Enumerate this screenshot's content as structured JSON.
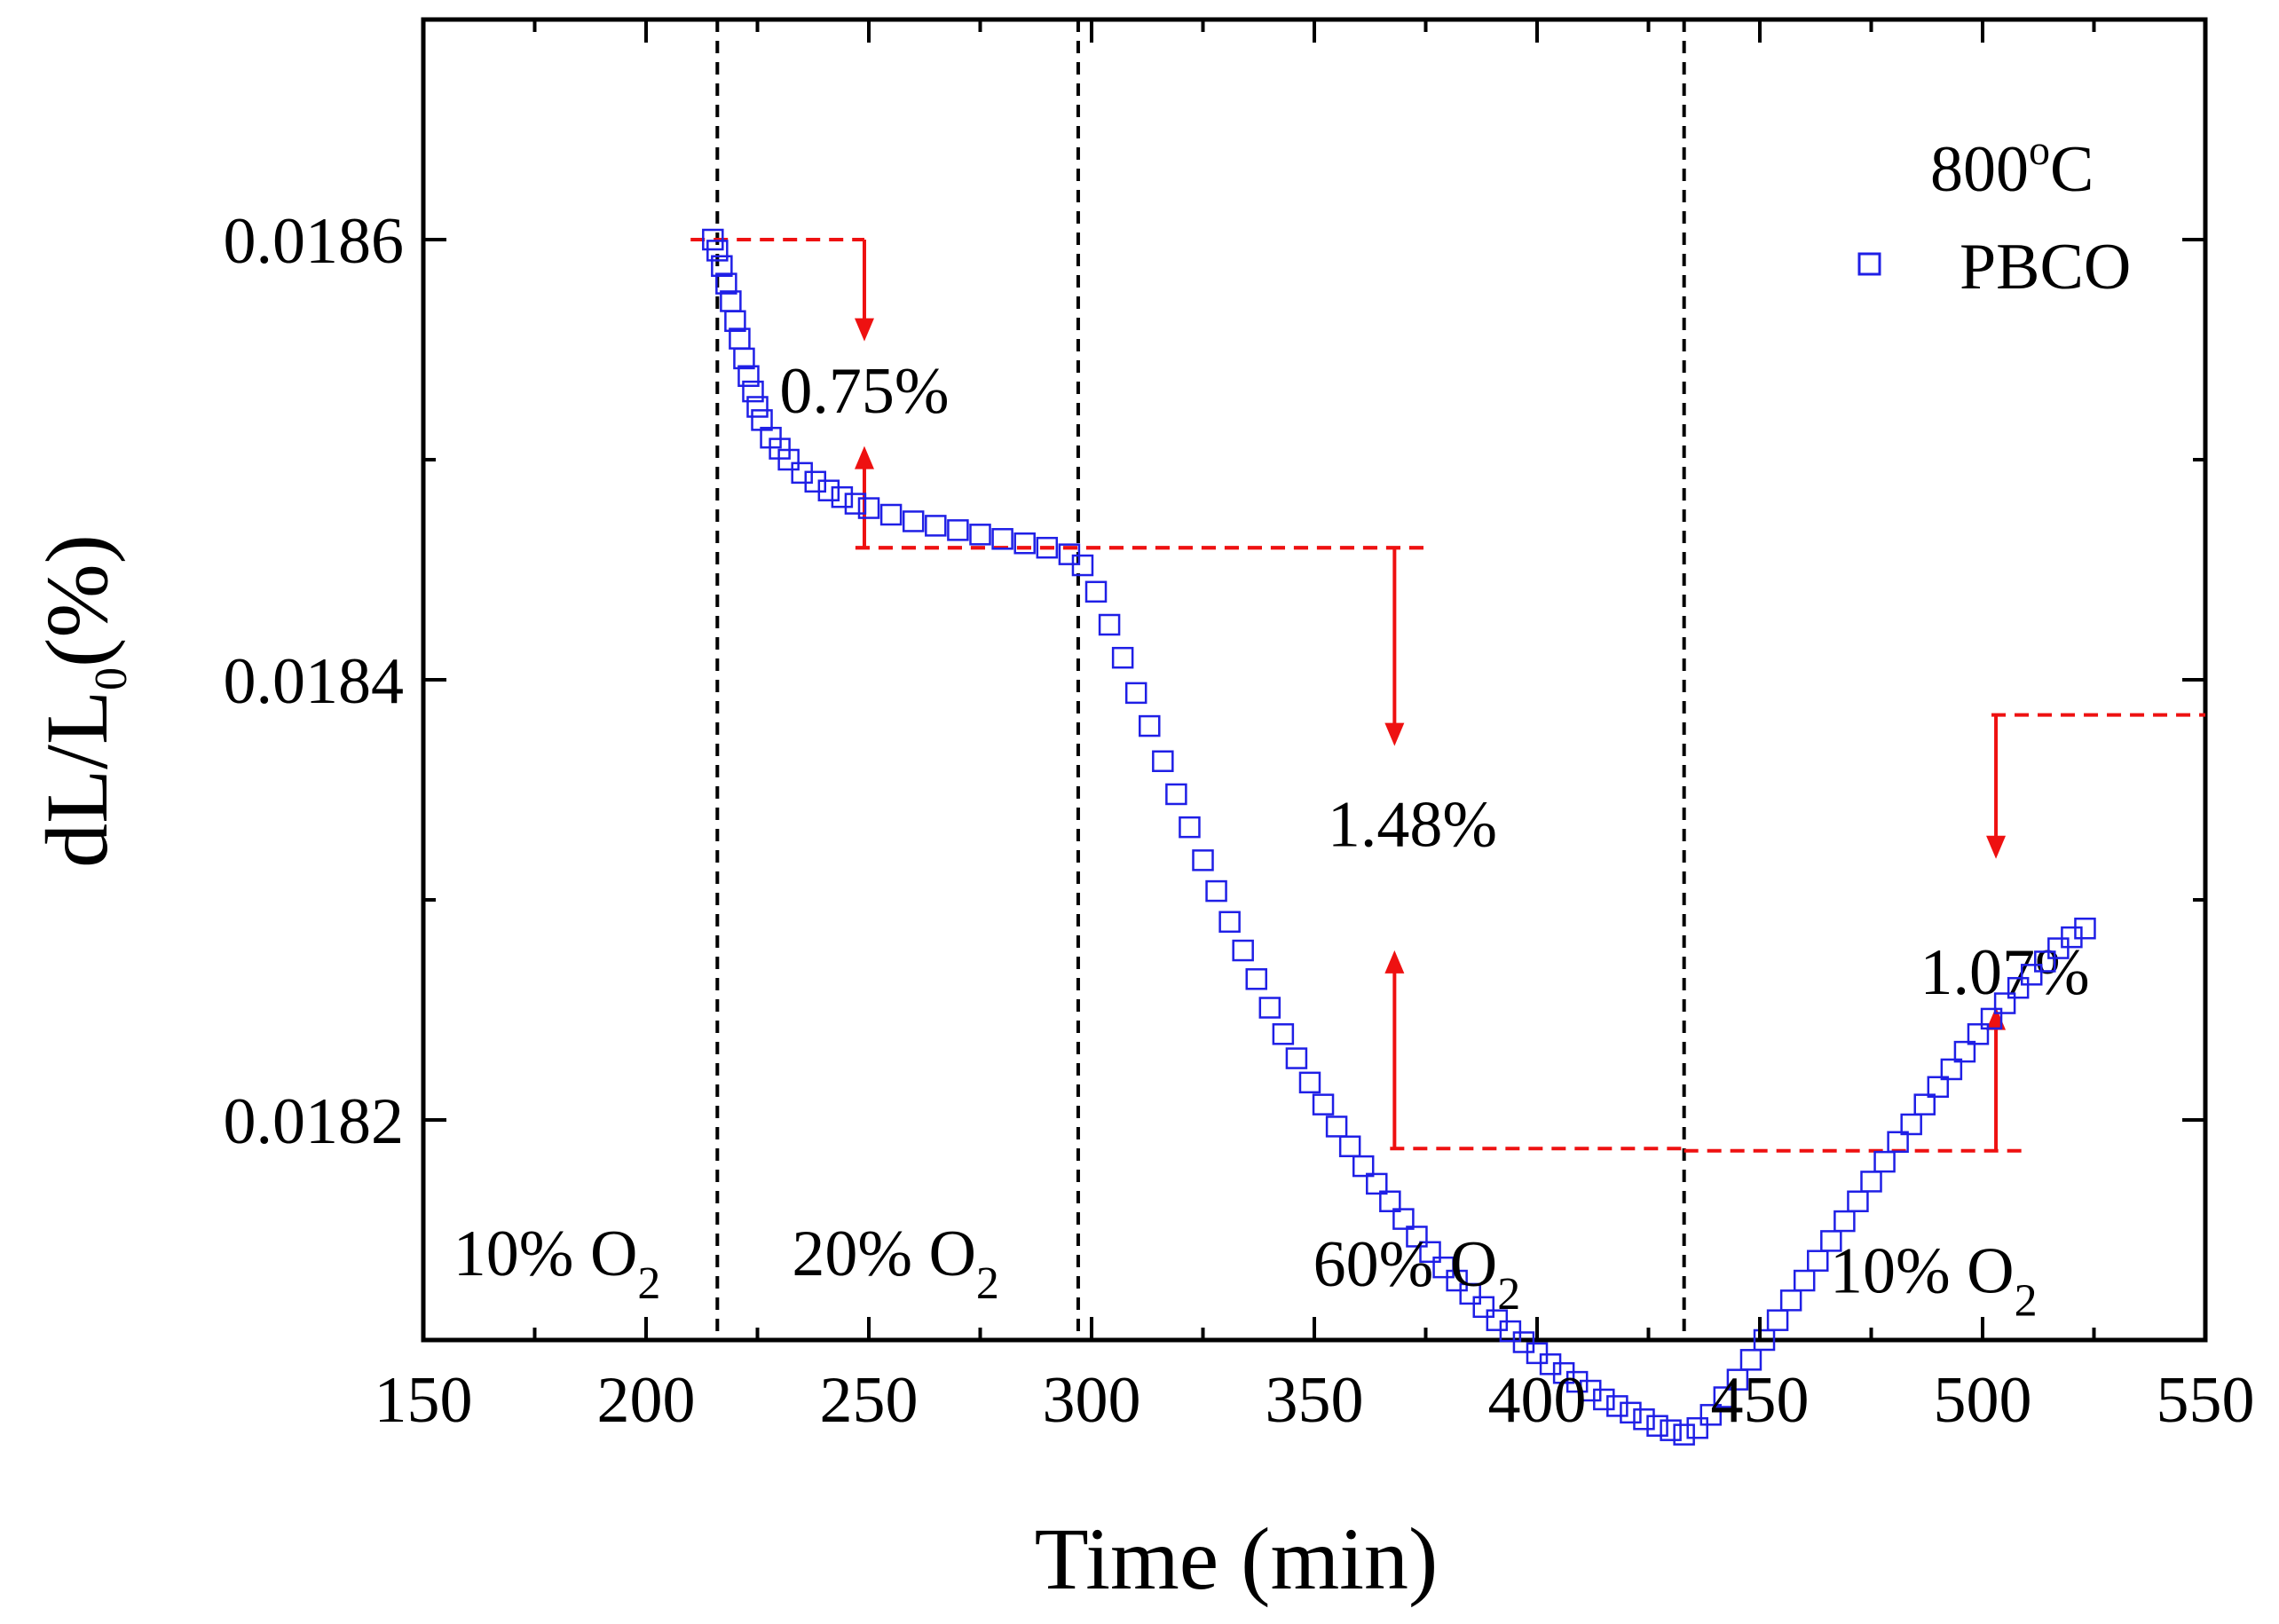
{
  "chart_data": {
    "type": "scatter",
    "xlabel": "Time (min)",
    "ylabel": {
      "main": "dL/L",
      "sub": "0",
      "unit": "(%)"
    },
    "xlim": [
      150,
      550
    ],
    "ylim": [
      0.0181,
      0.0187
    ],
    "xticks": [
      150,
      200,
      250,
      300,
      350,
      400,
      450,
      500,
      550
    ],
    "xtick_labels": [
      "150",
      "200",
      "250",
      "300",
      "350",
      "400",
      "450",
      "500",
      "550"
    ],
    "yticks": [
      0.0182,
      0.0184,
      0.0186
    ],
    "ytick_labels": [
      "0.0182",
      "0.0184",
      "0.0186"
    ],
    "legend": {
      "position": "top-right",
      "temperature": {
        "value": "800",
        "sup": "o",
        "unit": "C"
      },
      "label": "PBCO",
      "color": "#1f1fe6"
    },
    "series": [
      {
        "name": "PBCO",
        "marker": "open-square",
        "color": "#1f1fe6",
        "x": [
          215,
          216,
          217,
          218,
          219,
          220,
          221,
          222,
          223,
          224,
          225,
          226,
          228,
          230,
          232,
          235,
          238,
          241,
          244,
          247,
          250,
          255,
          260,
          265,
          270,
          275,
          280,
          285,
          290,
          295,
          298,
          301,
          304,
          307,
          310,
          313,
          316,
          319,
          322,
          325,
          328,
          331,
          334,
          337,
          340,
          343,
          346,
          349,
          352,
          355,
          358,
          361,
          364,
          367,
          370,
          373,
          376,
          379,
          382,
          385,
          388,
          391,
          394,
          397,
          400,
          403,
          406,
          409,
          412,
          415,
          418,
          421,
          424,
          427,
          430,
          433,
          436,
          439,
          442,
          445,
          448,
          451,
          454,
          457,
          460,
          463,
          466,
          469,
          472,
          475,
          478,
          481,
          484,
          487,
          490,
          493,
          496,
          499,
          502,
          505,
          508,
          511,
          514,
          517,
          520,
          523
        ],
        "y": [
          0.0186,
          0.018595,
          0.018588,
          0.01858,
          0.018572,
          0.018563,
          0.018555,
          0.018546,
          0.018538,
          0.018531,
          0.018524,
          0.018518,
          0.01851,
          0.018505,
          0.0185,
          0.018494,
          0.01849,
          0.018486,
          0.018483,
          0.01848,
          0.018478,
          0.018475,
          0.018472,
          0.01847,
          0.018468,
          0.018466,
          0.018464,
          0.018462,
          0.01846,
          0.018457,
          0.018452,
          0.01844,
          0.018425,
          0.01841,
          0.018394,
          0.018379,
          0.018363,
          0.018348,
          0.018333,
          0.018318,
          0.018304,
          0.01829,
          0.018277,
          0.018264,
          0.018251,
          0.018239,
          0.018228,
          0.018217,
          0.018207,
          0.018197,
          0.018188,
          0.018179,
          0.018171,
          0.018163,
          0.018155,
          0.018147,
          0.01814,
          0.018133,
          0.018127,
          0.018121,
          0.018115,
          0.018109,
          0.018104,
          0.018099,
          0.018094,
          0.018089,
          0.018085,
          0.018081,
          0.018077,
          0.018073,
          0.01807,
          0.018067,
          0.018064,
          0.018061,
          0.018059,
          0.018057,
          0.01806,
          0.018066,
          0.018074,
          0.018082,
          0.018091,
          0.0181,
          0.018109,
          0.018118,
          0.018127,
          0.018136,
          0.018145,
          0.018154,
          0.018163,
          0.018172,
          0.018181,
          0.01819,
          0.018198,
          0.018207,
          0.018215,
          0.018223,
          0.018231,
          0.018239,
          0.018246,
          0.018253,
          0.01826,
          0.018266,
          0.018272,
          0.018278,
          0.018283,
          0.018287
        ]
      }
    ],
    "vlines": [
      216,
      297,
      433
    ],
    "regions": [
      {
        "x": 180,
        "y": 0.01814,
        "text": "10% O",
        "sub": "2"
      },
      {
        "x": 256,
        "y": 0.01814,
        "text": "20% O",
        "sub": "2"
      },
      {
        "x": 373,
        "y": 0.018135,
        "text": "60% O",
        "sub": "2"
      },
      {
        "x": 489,
        "y": 0.018132,
        "text": "10% O",
        "sub": "2"
      }
    ],
    "steps": [
      {
        "label": "0.75%",
        "x": 249,
        "y_top": 0.0186,
        "y_bottom": 0.01846,
        "hline_top": [
          210,
          249
        ],
        "hline_bottom": [
          247,
          376
        ],
        "label_x": 249,
        "label_y": 0.018531
      },
      {
        "label": "1.48%",
        "x": 368,
        "y_top": 0.01846,
        "y_bottom": 0.018187,
        "hline_top": [
          247,
          376
        ],
        "hline_bottom": [
          367,
          433
        ],
        "label_x": 372,
        "label_y": 0.018334
      },
      {
        "label": "1.07%",
        "x": 503,
        "y_top": 0.018384,
        "y_bottom": 0.018186,
        "hline_top": [
          502,
          550
        ],
        "hline_bottom": [
          433,
          510
        ],
        "label_x": 505,
        "label_y": 0.018267
      }
    ]
  },
  "colors": {
    "data": "#1f1fe6",
    "annotation": "#ee1111",
    "axis": "#000000"
  }
}
